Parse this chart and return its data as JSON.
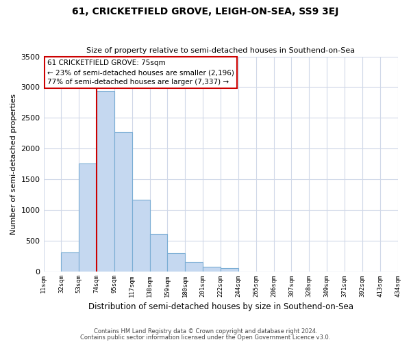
{
  "title": "61, CRICKETFIELD GROVE, LEIGH-ON-SEA, SS9 3EJ",
  "subtitle": "Size of property relative to semi-detached houses in Southend-on-Sea",
  "xlabel": "Distribution of semi-detached houses by size in Southend-on-Sea",
  "ylabel": "Number of semi-detached properties",
  "bin_labels": [
    "11sqm",
    "32sqm",
    "53sqm",
    "74sqm",
    "95sqm",
    "117sqm",
    "138sqm",
    "159sqm",
    "180sqm",
    "201sqm",
    "222sqm",
    "244sqm",
    "265sqm",
    "286sqm",
    "307sqm",
    "328sqm",
    "349sqm",
    "371sqm",
    "392sqm",
    "413sqm",
    "434sqm"
  ],
  "bar_values": [
    0,
    310,
    1760,
    2940,
    2270,
    1170,
    610,
    300,
    150,
    70,
    50,
    0,
    0,
    0,
    0,
    0,
    0,
    0,
    0,
    0
  ],
  "bar_color": "#c5d8f0",
  "bar_edge_color": "#7aadd4",
  "property_line_bin_index": 3,
  "property_line_color": "#cc0000",
  "annotation_title": "61 CRICKETFIELD GROVE: 75sqm",
  "annotation_line1": "← 23% of semi-detached houses are smaller (2,196)",
  "annotation_line2": "77% of semi-detached houses are larger (7,337) →",
  "annotation_box_color": "#ffffff",
  "annotation_box_edge_color": "#cc0000",
  "ylim": [
    0,
    3500
  ],
  "yticks": [
    0,
    500,
    1000,
    1500,
    2000,
    2500,
    3000,
    3500
  ],
  "footer1": "Contains HM Land Registry data © Crown copyright and database right 2024.",
  "footer2": "Contains public sector information licensed under the Open Government Licence v3.0.",
  "bg_color": "#ffffff",
  "grid_color": "#d0d8e8"
}
